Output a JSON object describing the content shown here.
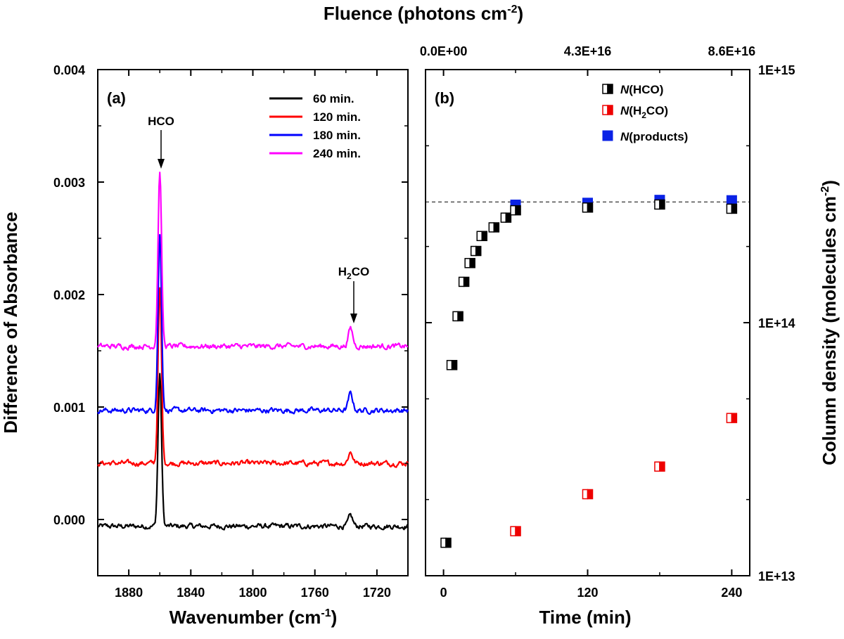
{
  "chart_data": [
    {
      "panel": "(a)",
      "type": "line",
      "xlabel": "Wavenumber (cm",
      "xlabel_sup": "-1",
      "xlabel_end": ")",
      "ylabel": "Difference of Absorbance",
      "xlim": [
        1900,
        1700
      ],
      "ylim": [
        -0.0005,
        0.004
      ],
      "x_ticks": [
        1880,
        1840,
        1800,
        1760,
        1720
      ],
      "y_ticks": [
        0.0,
        0.001,
        0.002,
        0.003,
        0.004
      ],
      "y_tick_labels": [
        "0.000",
        "0.001",
        "0.002",
        "0.003",
        "0.004"
      ],
      "annotations": [
        {
          "text": "HCO",
          "x": 1860,
          "y": 0.00312
        },
        {
          "text_main": "H",
          "text_sub": "2",
          "text_end": "CO",
          "x": 1737,
          "y": 0.0017
        }
      ],
      "series": [
        {
          "name": "60 min.",
          "color": "#000000",
          "baseline": -6e-05,
          "hco_peak": 0.0013,
          "h2co_peak": 3e-05
        },
        {
          "name": "120 min.",
          "color": "#ff0000",
          "baseline": 0.0005,
          "hco_peak": 0.00204,
          "h2co_peak": 0.0006
        },
        {
          "name": "180 min.",
          "color": "#0000ff",
          "baseline": 0.00097,
          "hco_peak": 0.00253,
          "h2co_peak": 0.00112
        },
        {
          "name": "240 min.",
          "color": "#ff00ff",
          "baseline": 0.00154,
          "hco_peak": 0.0031,
          "h2co_peak": 0.0017
        }
      ]
    },
    {
      "panel": "(b)",
      "type": "scatter",
      "xlabel": "Time (min)",
      "ylabel": "Column density (molecules cm",
      "ylabel_sup": "-2",
      "ylabel_end": ")",
      "top_xlabel": "Fluence (photons cm",
      "top_xlabel_sup": "-2",
      "top_xlabel_end": ")",
      "xlim": [
        -15,
        255
      ],
      "ylim_log": [
        10000000000000.0,
        1000000000000000.0
      ],
      "x_ticks": [
        0,
        120,
        240
      ],
      "x_tick_labels": [
        "0",
        "120",
        "240"
      ],
      "top_ticks": [
        0,
        120,
        240
      ],
      "top_tick_labels": [
        "0.0E+00",
        "4.3E+16",
        "8.6E+16"
      ],
      "y_ticks": [
        10000000000000.0,
        100000000000000.0,
        1000000000000000.0
      ],
      "y_tick_labels": [
        "1E+13",
        "1E+14",
        "1E+15"
      ],
      "reference_line": 300000000000000.0,
      "series": [
        {
          "name_italic": "N",
          "name_rest": "(HCO)",
          "marker": "half-black",
          "x": [
            2,
            7,
            12,
            17,
            22,
            27,
            32,
            42,
            52,
            60,
            120,
            180,
            240
          ],
          "y": [
            13500000000000.0,
            68000000000000.0,
            106000000000000.0,
            145000000000000.0,
            172000000000000.0,
            192000000000000.0,
            220000000000000.0,
            238000000000000.0,
            260000000000000.0,
            278000000000000.0,
            285000000000000.0,
            293000000000000.0,
            282000000000000.0
          ]
        },
        {
          "name_italic": "N",
          "name_main": "(H",
          "name_sub": "2",
          "name_end": "CO)",
          "marker": "half-red",
          "x": [
            60,
            120,
            180,
            240
          ],
          "y": [
            15000000000000.0,
            21000000000000.0,
            27000000000000.0,
            42000000000000.0
          ]
        },
        {
          "name_italic": "N",
          "name_rest": "(products)",
          "marker": "blue",
          "x": [
            60,
            120,
            180,
            240
          ],
          "y": [
            292000000000000.0,
            297000000000000.0,
            305000000000000.0,
            304000000000000.0
          ]
        }
      ]
    }
  ]
}
